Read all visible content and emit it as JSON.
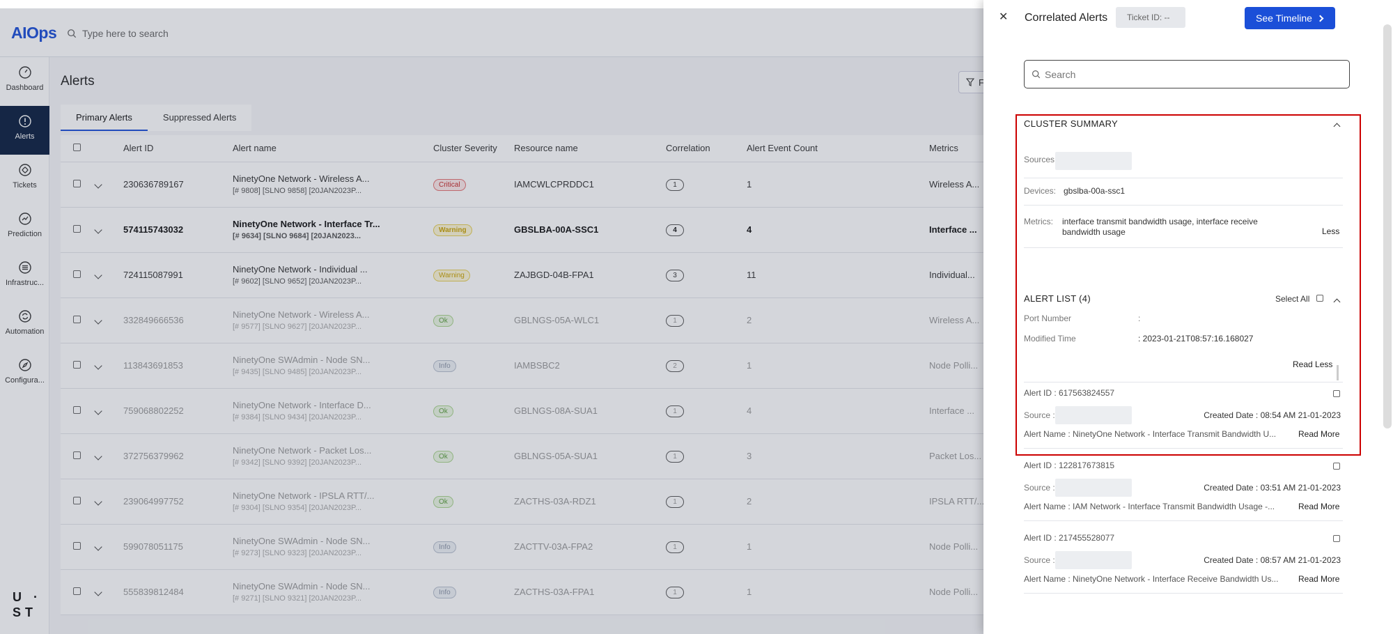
{
  "app": {
    "logo": "AIOps",
    "search_placeholder": "Type here to search"
  },
  "sidebar": {
    "items": [
      {
        "label": "Dashboard",
        "icon": "gauge-icon"
      },
      {
        "label": "Alerts",
        "icon": "alert-circle-icon",
        "active": true
      },
      {
        "label": "Tickets",
        "icon": "ticket-icon"
      },
      {
        "label": "Prediction",
        "icon": "prediction-icon"
      },
      {
        "label": "Infrastruc...",
        "icon": "list-icon"
      },
      {
        "label": "Automation",
        "icon": "automation-icon"
      },
      {
        "label": "Configura...",
        "icon": "compass-icon"
      }
    ],
    "brand_line1": "U ·",
    "brand_line2": "ST"
  },
  "page": {
    "title": "Alerts",
    "filter_label": "F",
    "tabs": [
      {
        "label": "Primary Alerts",
        "active": true
      },
      {
        "label": "Suppressed Alerts",
        "active": false
      }
    ]
  },
  "table": {
    "headers": [
      "Alert ID",
      "Alert name",
      "Cluster Severity",
      "Resource name",
      "Correlation",
      "Alert Event Count",
      "Metrics"
    ],
    "rows": [
      {
        "id": "230636789167",
        "name": "NinetyOne Network - Wireless A...",
        "sub": "[# 9808] [SLNO 9858] [20JAN2023P...",
        "severity": "Critical",
        "sev_class": "critical",
        "resource": "IAMCWLCPRDDC1",
        "correlation": "1",
        "count": "1",
        "metrics": "Wireless A...",
        "style": "normal"
      },
      {
        "id": "574115743032",
        "name": "NinetyOne Network - Interface Tr...",
        "sub": "[# 9634] [SLNO 9684] [20JAN2023...",
        "severity": "Warning",
        "sev_class": "warning",
        "resource": "GBSLBA-00A-SSC1",
        "correlation": "4",
        "count": "4",
        "metrics": "Interface ...",
        "style": "bold"
      },
      {
        "id": "724115087991",
        "name": "NinetyOne Network - Individual ...",
        "sub": "[# 9602] [SLNO 9652] [20JAN2023P...",
        "severity": "Warning",
        "sev_class": "warning",
        "resource": "ZAJBGD-04B-FPA1",
        "correlation": "3",
        "count": "11",
        "metrics": "Individual...",
        "style": "normal"
      },
      {
        "id": "332849666536",
        "name": "NinetyOne Network - Wireless A...",
        "sub": "[# 9577] [SLNO 9627] [20JAN2023P...",
        "severity": "Ok",
        "sev_class": "ok",
        "resource": "GBLNGS-05A-WLC1",
        "correlation": "1",
        "count": "2",
        "metrics": "Wireless A...",
        "style": "faded"
      },
      {
        "id": "113843691853",
        "name": "NinetyOne SWAdmin - Node SN...",
        "sub": "[# 9435] [SLNO 9485] [20JAN2023P...",
        "severity": "Info",
        "sev_class": "info",
        "resource": "IAMBSBC2",
        "correlation": "2",
        "count": "1",
        "metrics": "Node Polli...",
        "style": "faded"
      },
      {
        "id": "759068802252",
        "name": "NinetyOne Network - Interface D...",
        "sub": "[# 9384] [SLNO 9434] [20JAN2023P...",
        "severity": "Ok",
        "sev_class": "ok",
        "resource": "GBLNGS-08A-SUA1",
        "correlation": "1",
        "count": "4",
        "metrics": "Interface ...",
        "style": "faded"
      },
      {
        "id": "372756379962",
        "name": "NinetyOne Network - Packet Los...",
        "sub": "[# 9342] [SLNO 9392] [20JAN2023P...",
        "severity": "Ok",
        "sev_class": "ok",
        "resource": "GBLNGS-05A-SUA1",
        "correlation": "1",
        "count": "3",
        "metrics": "Packet Los...",
        "style": "faded"
      },
      {
        "id": "239064997752",
        "name": "NinetyOne Network - IPSLA RTT/...",
        "sub": "[# 9304] [SLNO 9354] [20JAN2023P...",
        "severity": "Ok",
        "sev_class": "ok",
        "resource": "ZACTHS-03A-RDZ1",
        "correlation": "1",
        "count": "2",
        "metrics": "IPSLA RTT/...",
        "style": "faded"
      },
      {
        "id": "599078051175",
        "name": "NinetyOne SWAdmin - Node SN...",
        "sub": "[# 9273] [SLNO 9323] [20JAN2023P...",
        "severity": "Info",
        "sev_class": "info",
        "resource": "ZACTTV-03A-FPA2",
        "correlation": "1",
        "count": "1",
        "metrics": "Node Polli...",
        "style": "faded"
      },
      {
        "id": "555839812484",
        "name": "NinetyOne SWAdmin - Node SN...",
        "sub": "[# 9271] [SLNO 9321] [20JAN2023P...",
        "severity": "Info",
        "sev_class": "info",
        "resource": "ZACTHS-03A-FPA1",
        "correlation": "1",
        "count": "1",
        "metrics": "Node Polli...",
        "style": "faded"
      }
    ]
  },
  "drawer": {
    "title": "Correlated Alerts",
    "ticket_label": "Ticket ID: --",
    "timeline_button": "See Timeline",
    "search_placeholder": "Search",
    "cluster_summary": {
      "header": "CLUSTER SUMMARY",
      "sources_label": "Sources",
      "devices_label": "Devices:",
      "devices_value": "gbslba-00a-ssc1",
      "metrics_label": "Metrics:",
      "metrics_value_line1": "interface transmit bandwidth usage, interface receive",
      "metrics_value_line2": "bandwidth usage",
      "less_link": "Less"
    },
    "alert_list": {
      "header": "ALERT LIST (4)",
      "select_all": "Select All",
      "port_label": "Port Number",
      "port_sep": ":",
      "modified_label": "Modified Time",
      "modified_value": ":  2023-01-21T08:57:16.168027",
      "read_less": "Read Less",
      "items": [
        {
          "alert_id": "Alert ID : 617563824557",
          "source_label": "Source :",
          "created": "Created Date : 08:54 AM 21-01-2023",
          "name": "Alert Name : NinetyOne Network - Interface Transmit Bandwidth U...",
          "read_more": "Read More"
        },
        {
          "alert_id": "Alert ID : 122817673815",
          "source_label": "Source :",
          "created": "Created Date : 03:51 AM 21-01-2023",
          "name": "Alert Name : IAM Network - Interface Transmit Bandwidth Usage -...",
          "read_more": "Read More"
        },
        {
          "alert_id": "Alert ID : 217455528077",
          "source_label": "Source :",
          "created": "Created Date : 08:57 AM 21-01-2023",
          "name": "Alert Name : NinetyOne Network - Interface Receive Bandwidth Us...",
          "read_more": "Read More"
        }
      ]
    }
  }
}
